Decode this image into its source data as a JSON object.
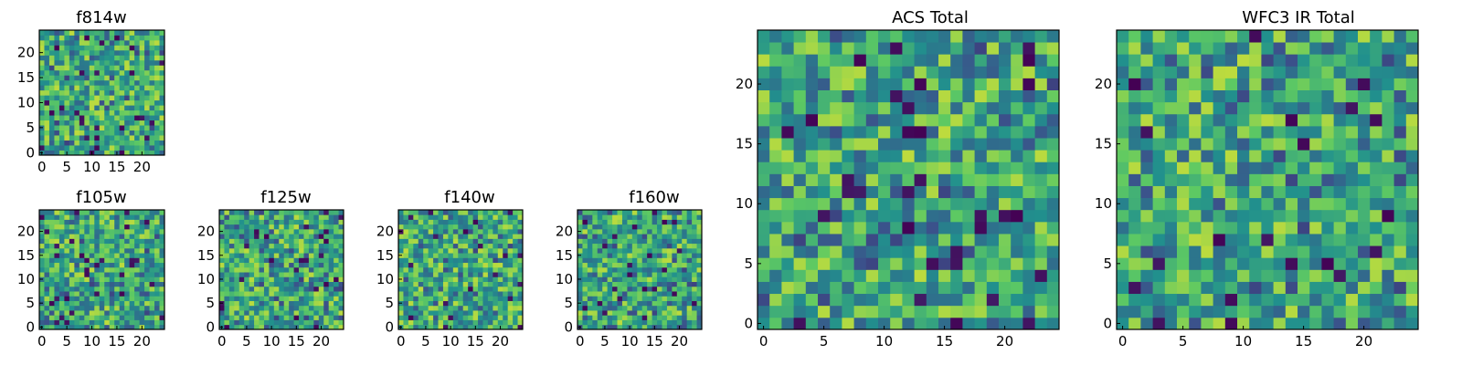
{
  "colormap": [
    "#440154",
    "#3b528b",
    "#21908d",
    "#5dc963",
    "#fde725"
  ],
  "chart_data": [
    {
      "type": "heatmap",
      "title": "f814w",
      "shape": [
        25,
        25
      ],
      "seed": 11,
      "xticks": [
        0,
        5,
        10,
        15,
        20
      ],
      "yticks": [
        0,
        5,
        10,
        15,
        20
      ],
      "xlim": [
        0,
        24
      ],
      "ylim": [
        0,
        24
      ]
    },
    {
      "type": "heatmap",
      "title": "f105w",
      "shape": [
        25,
        25
      ],
      "seed": 23,
      "xticks": [
        0,
        5,
        10,
        15,
        20
      ],
      "yticks": [
        0,
        5,
        10,
        15,
        20
      ],
      "xlim": [
        0,
        24
      ],
      "ylim": [
        0,
        24
      ]
    },
    {
      "type": "heatmap",
      "title": "f125w",
      "shape": [
        25,
        25
      ],
      "seed": 37,
      "xticks": [
        0,
        5,
        10,
        15,
        20
      ],
      "yticks": [
        0,
        5,
        10,
        15,
        20
      ],
      "xlim": [
        0,
        24
      ],
      "ylim": [
        0,
        24
      ]
    },
    {
      "type": "heatmap",
      "title": "f140w",
      "shape": [
        25,
        25
      ],
      "seed": 41,
      "xticks": [
        0,
        5,
        10,
        15,
        20
      ],
      "yticks": [
        0,
        5,
        10,
        15,
        20
      ],
      "xlim": [
        0,
        24
      ],
      "ylim": [
        0,
        24
      ]
    },
    {
      "type": "heatmap",
      "title": "f160w",
      "shape": [
        25,
        25
      ],
      "seed": 53,
      "xticks": [
        0,
        5,
        10,
        15,
        20
      ],
      "yticks": [
        0,
        5,
        10,
        15,
        20
      ],
      "xlim": [
        0,
        24
      ],
      "ylim": [
        0,
        24
      ]
    },
    {
      "type": "heatmap",
      "title": "ACS Total",
      "shape": [
        25,
        25
      ],
      "seed": 67,
      "xticks": [
        0,
        5,
        10,
        15,
        20
      ],
      "yticks": [
        0,
        5,
        10,
        15,
        20
      ],
      "xlim": [
        0,
        24
      ],
      "ylim": [
        0,
        24
      ]
    },
    {
      "type": "heatmap",
      "title": "WFC3 IR Total",
      "shape": [
        25,
        25
      ],
      "seed": 79,
      "xticks": [
        0,
        5,
        10,
        15,
        20
      ],
      "yticks": [
        0,
        5,
        10,
        15,
        20
      ],
      "xlim": [
        0,
        24
      ],
      "ylim": [
        0,
        24
      ]
    }
  ]
}
